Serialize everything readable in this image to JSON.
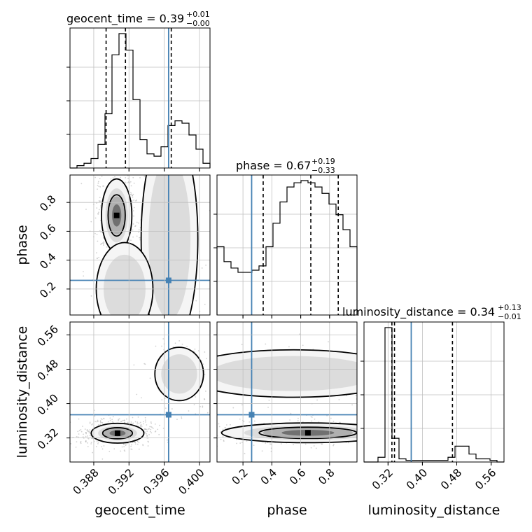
{
  "chart_data": {
    "type": "scatter",
    "kind": "corner-plot",
    "grid": true,
    "parameters": [
      "geocent_time",
      "phase",
      "luminosity_distance"
    ],
    "axis_labels": {
      "geocent_time": "geocent_time",
      "phase": "phase",
      "luminosity_distance": "luminosity_distance"
    },
    "titles": {
      "geocent_time": {
        "name": "geocent_time",
        "value": "0.39",
        "upper": "+0.01",
        "lower": "−0.00"
      },
      "phase": {
        "name": "phase",
        "value": "0.67",
        "upper": "+0.19",
        "lower": "−0.33"
      },
      "luminosity_distance": {
        "name": "luminosity_distance",
        "value": "0.34",
        "upper": "+0.13",
        "lower": "−0.01"
      }
    },
    "ranges": {
      "geocent_time": [
        0.3853,
        0.4012
      ],
      "phase": [
        0.02,
        0.99
      ],
      "luminosity_distance": [
        0.264,
        0.59
      ]
    },
    "ticks": {
      "geocent_time": [
        0.388,
        0.392,
        0.396,
        0.4
      ],
      "phase": [
        0.2,
        0.4,
        0.6,
        0.8
      ],
      "luminosity_distance": [
        0.32,
        0.4,
        0.48,
        0.56
      ]
    },
    "tick_labels": {
      "geocent_time": [
        "0.388",
        "0.392",
        "0.396",
        "0.400"
      ],
      "phase": [
        "0.2",
        "0.4",
        "0.6",
        "0.8"
      ],
      "luminosity_distance": [
        "0.32",
        "0.40",
        "0.48",
        "0.56"
      ]
    },
    "truths": {
      "geocent_time": 0.3965,
      "phase": 0.26,
      "luminosity_distance": 0.374
    },
    "quantiles": {
      "geocent_time": [
        0.3894,
        0.3916,
        0.3968
      ],
      "phase": [
        0.34,
        0.67,
        0.86
      ],
      "luminosity_distance": [
        0.329,
        0.335,
        0.47
      ]
    },
    "histograms": {
      "geocent_time": {
        "edges_start": 0.3853,
        "bin_width": 0.000795,
        "counts": [
          0,
          1,
          2,
          4,
          10,
          23,
          48,
          57,
          50,
          29,
          12,
          6,
          5,
          9,
          18,
          20,
          19,
          14,
          8,
          2
        ]
      },
      "phase": {
        "edges_start": 0.02,
        "bin_width": 0.0485,
        "counts": [
          32,
          25,
          22,
          20,
          20,
          21,
          23,
          32,
          43,
          53,
          60,
          62,
          63,
          62,
          60,
          57,
          52,
          47,
          40,
          32
        ]
      },
      "luminosity_distance": {
        "edges_start": 0.264,
        "bin_width": 0.0163,
        "counts": [
          0,
          0,
          3,
          85,
          15,
          2,
          1,
          1,
          1,
          1,
          1,
          1,
          3,
          10,
          10,
          5,
          2,
          2,
          1,
          0
        ]
      }
    },
    "density_2d": {
      "phase_vs_geocent_time": {
        "clusters": [
          {
            "cx": 0.3906,
            "cy": 0.71,
            "sx": 0.00075,
            "sy": 0.11,
            "weight": 1.0
          },
          {
            "cx": 0.3966,
            "cy": 0.55,
            "sx": 0.0014,
            "sy": 0.33,
            "weight": 0.35
          },
          {
            "cx": 0.3915,
            "cy": 0.2,
            "sx": 0.0014,
            "sy": 0.14,
            "weight": 0.18
          }
        ]
      },
      "luminosity_distance_vs_geocent_time": {
        "clusters": [
          {
            "cx": 0.3907,
            "cy": 0.331,
            "sx": 0.0013,
            "sy": 0.01,
            "weight": 1.0
          },
          {
            "cx": 0.3977,
            "cy": 0.469,
            "sx": 0.0012,
            "sy": 0.027,
            "weight": 0.3
          }
        ]
      },
      "luminosity_distance_vs_phase": {
        "clusters": [
          {
            "cx": 0.65,
            "cy": 0.332,
            "sx": 0.26,
            "sy": 0.01,
            "weight": 1.0
          },
          {
            "cx": 0.55,
            "cy": 0.47,
            "sx": 0.34,
            "sy": 0.024,
            "weight": 0.3
          }
        ]
      }
    },
    "colors": {
      "truth": "#4682b4",
      "hist": "#000000",
      "grid": "#bfbfbf",
      "scatter": "#7f7f7f"
    }
  }
}
